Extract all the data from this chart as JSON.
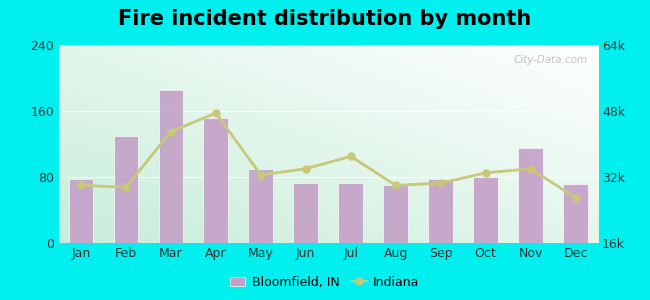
{
  "months": [
    "Jan",
    "Feb",
    "Mar",
    "Apr",
    "May",
    "Jun",
    "Jul",
    "Aug",
    "Sep",
    "Oct",
    "Nov",
    "Dec"
  ],
  "bloomfield_values": [
    78,
    130,
    185,
    152,
    90,
    73,
    73,
    70,
    78,
    80,
    115,
    72
  ],
  "indiana_values": [
    30000,
    29500,
    43000,
    47500,
    32500,
    34000,
    37000,
    30000,
    30500,
    33000,
    34000,
    27000
  ],
  "bar_color": "#c4a0c8",
  "bar_edge_color": "#ffffff",
  "line_color": "#c8c87a",
  "line_marker": "o",
  "title": "Fire incident distribution by month",
  "title_fontsize": 15,
  "left_ylim": [
    0,
    240
  ],
  "left_yticks": [
    0,
    80,
    160,
    240
  ],
  "right_ylim": [
    16000,
    64000
  ],
  "right_yticks": [
    16000,
    32000,
    48000,
    64000
  ],
  "right_yticklabels": [
    "16k",
    "32k",
    "48k",
    "64k"
  ],
  "outer_bg": "#00f0f0",
  "legend_bloomfield": "Bloomfield, IN",
  "legend_indiana": "Indiana",
  "watermark": "City-Data.com",
  "bg_top_right": "#f5fffa",
  "bg_bottom_left": "#c8eeda"
}
